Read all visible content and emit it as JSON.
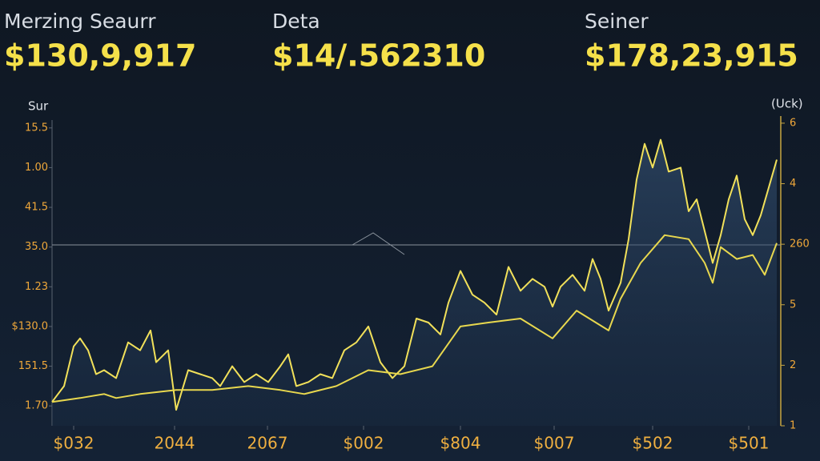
{
  "stats": [
    {
      "label": "Merzing Seaurr",
      "value": "$130,9,917"
    },
    {
      "label": "Deta",
      "value": "$14/.562310"
    },
    {
      "label": "Seiner",
      "value": "$178,23,915"
    }
  ],
  "chart_data": {
    "type": "line",
    "y_axis_label": "Sur",
    "y2_axis_label": "(Uck)",
    "xlim": [
      0,
      905
    ],
    "ylim": [
      -0.5,
      7.5
    ],
    "y2lim": [
      0,
      5.25
    ],
    "xticks": [
      {
        "value": 27,
        "label": "$032"
      },
      {
        "value": 153,
        "label": "2044"
      },
      {
        "value": 269,
        "label": "2067"
      },
      {
        "value": 389,
        "label": "$002"
      },
      {
        "value": 510,
        "label": "$804"
      },
      {
        "value": 627,
        "label": "$007"
      },
      {
        "value": 750,
        "label": "$502"
      },
      {
        "value": 870,
        "label": "$501"
      }
    ],
    "yticks": [
      {
        "value": 0,
        "label": "1.70"
      },
      {
        "value": 1,
        "label": "151.5"
      },
      {
        "value": 2,
        "label": "$130.0"
      },
      {
        "value": 3,
        "label": "1.23"
      },
      {
        "value": 4,
        "label": "35.0"
      },
      {
        "value": 5,
        "label": "41.5"
      },
      {
        "value": 6,
        "label": "1.00"
      },
      {
        "value": 7,
        "label": "15.5"
      }
    ],
    "y2ticks": [
      {
        "value": 0,
        "label": "1"
      },
      {
        "value": 1,
        "label": "2"
      },
      {
        "value": 2,
        "label": "5"
      },
      {
        "value": 3,
        "label": "260"
      },
      {
        "value": 4,
        "label": "4"
      },
      {
        "value": 5,
        "label": "6"
      }
    ],
    "grid": false,
    "series": [
      {
        "color": "#f2e15a",
        "x": [
          0,
          15,
          27,
          35,
          45,
          55,
          65,
          80,
          95,
          110,
          123,
          130,
          145,
          155,
          170,
          185,
          200,
          210,
          225,
          240,
          255,
          270,
          285,
          295,
          305,
          320,
          335,
          350,
          365,
          380,
          395,
          410,
          425,
          440,
          455,
          470,
          485,
          495,
          510,
          525,
          540,
          555,
          570,
          585,
          600,
          615,
          625,
          635,
          650,
          665,
          675,
          685,
          695,
          710,
          720,
          730,
          740,
          750,
          760,
          770,
          785,
          795,
          805,
          815,
          825,
          835,
          845,
          855,
          865,
          875,
          885,
          895,
          905
        ],
        "values": [
          0.1,
          0.5,
          1.5,
          1.7,
          1.4,
          0.8,
          0.9,
          0.7,
          1.6,
          1.4,
          1.9,
          1.1,
          1.4,
          -0.1,
          0.9,
          0.8,
          0.7,
          0.5,
          1.0,
          0.6,
          0.8,
          0.6,
          1.0,
          1.3,
          0.5,
          0.6,
          0.8,
          0.7,
          1.4,
          1.6,
          2.0,
          1.1,
          0.7,
          1.0,
          2.2,
          2.1,
          1.8,
          2.6,
          3.4,
          2.8,
          2.6,
          2.3,
          3.5,
          2.9,
          3.2,
          3.0,
          2.5,
          3.0,
          3.3,
          2.9,
          3.7,
          3.2,
          2.4,
          3.1,
          4.2,
          5.7,
          6.6,
          6.0,
          6.7,
          5.9,
          6.0,
          4.9,
          5.2,
          4.4,
          3.6,
          4.3,
          5.2,
          5.8,
          4.7,
          4.3,
          4.8,
          5.5,
          6.2
        ]
      },
      {
        "color": "#e8d84e",
        "x": [
          0,
          35,
          65,
          80,
          110,
          155,
          200,
          245,
          285,
          315,
          355,
          395,
          435,
          475,
          510,
          545,
          585,
          625,
          655,
          695,
          710,
          735,
          765,
          795,
          815,
          825,
          835,
          855,
          875,
          890,
          905
        ],
        "values": [
          0.1,
          0.2,
          0.3,
          0.2,
          0.3,
          0.4,
          0.4,
          0.5,
          0.4,
          0.3,
          0.5,
          0.9,
          0.8,
          1.0,
          2.0,
          2.1,
          2.2,
          1.7,
          2.4,
          1.9,
          2.7,
          3.6,
          4.3,
          4.2,
          3.6,
          3.1,
          4.0,
          3.7,
          3.8,
          3.3,
          4.1
        ]
      }
    ]
  }
}
